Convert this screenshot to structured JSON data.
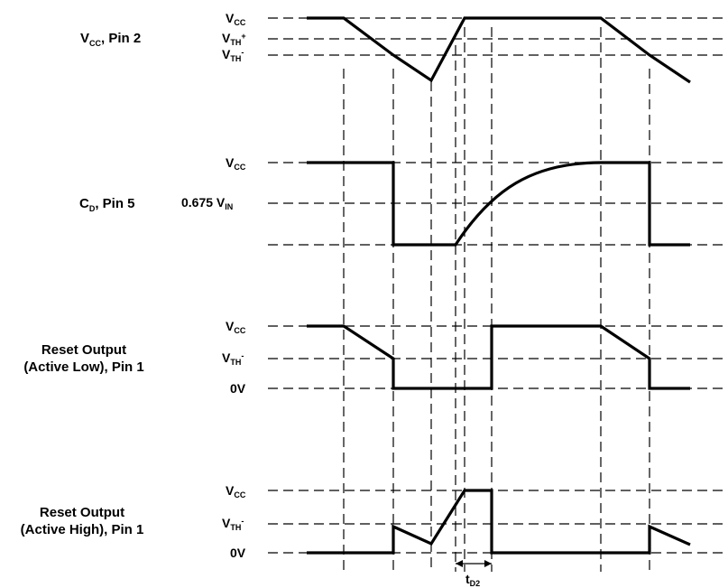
{
  "signals": {
    "vcc_pin": {
      "label_main": "V",
      "label_sub": "CC",
      "label_rest": ", Pin 2"
    },
    "cd_pin": {
      "label_main": "C",
      "label_sub": "D",
      "label_rest": ", Pin 5"
    },
    "reset_low": {
      "line1": "Reset Output",
      "line2": "(Active Low), Pin 1"
    },
    "reset_high": {
      "line1": "Reset Output",
      "line2": "(Active High), Pin 1"
    }
  },
  "levels": {
    "v": "V",
    "cc": "CC",
    "th": "TH",
    "plus": "+",
    "minus": "-",
    "v0": "0V",
    "cd_mid_value": "0.675 V",
    "cd_mid_sub": "IN"
  },
  "timing": {
    "t": "t",
    "t_sub": "D2"
  }
}
